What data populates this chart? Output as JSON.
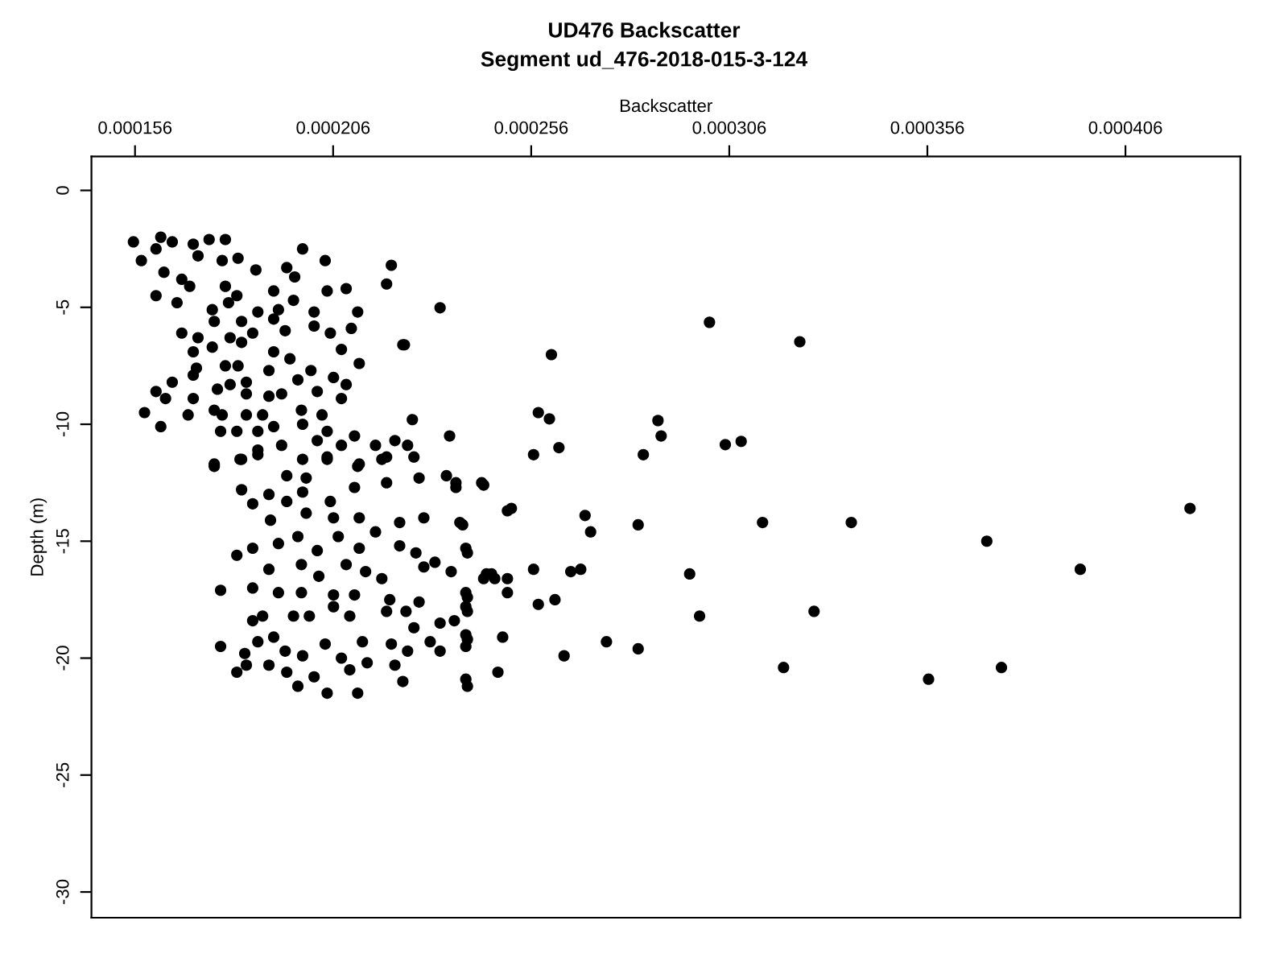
{
  "chart_data": {
    "type": "scatter",
    "title": "UD476 Backscatter",
    "subtitle": "Segment ud_476-2018-015-3-124",
    "xlabel": "Backscatter",
    "ylabel": "Depth (m)",
    "xlim": [
      0.000145,
      0.000435
    ],
    "ylim": [
      -31.1,
      1.45
    ],
    "xticks": [
      {
        "value": 0.000156,
        "label": "0.000156"
      },
      {
        "value": 0.000206,
        "label": "0.000206"
      },
      {
        "value": 0.000256,
        "label": "0.000256"
      },
      {
        "value": 0.000306,
        "label": "0.000306"
      },
      {
        "value": 0.000356,
        "label": "0.000356"
      },
      {
        "value": 0.000406,
        "label": "0.000406"
      }
    ],
    "yticks": [
      0,
      -5,
      -10,
      -15,
      -20,
      -25,
      -30
    ],
    "grid": false,
    "marker": "circle",
    "legend": false,
    "series": [
      {
        "color": "#000000",
        "x": [
          0.000301,
          0.0003238,
          0.0002611,
          0.000233,
          0.000224,
          0.000288,
          0.0002888,
          0.0002843,
          0.000305,
          0.000309,
          0.0002578,
          0.0002606,
          0.0002566,
          0.000263,
          0.0004223,
          0.0003144,
          0.0003368,
          0.000371,
          0.0003946,
          0.000296,
          0.0002985,
          0.0003274,
          0.0003197,
          0.0003563,
          0.0003747,
          0.0002696,
          0.000271,
          0.000283,
          0.00025,
          0.000251,
          0.0002566,
          0.000266,
          0.0002685,
          0.0002578,
          0.000262,
          0.000275,
          0.000283,
          0.0002643,
          0.0002476,
          0.0002395,
          0.0002488,
          0.0002435,
          0.000237,
          0.0002354,
          0.000226,
          0.000246,
          0.0002447,
          0.00025,
          0.00025,
          0.0002395,
          0.0002395,
          0.0002395,
          0.0002395,
          0.000238,
          0.0002395,
          0.0001556,
          0.0001625,
          0.0001654,
          0.0001707,
          0.0001747,
          0.0001788,
          0.0001576,
          0.0001613,
          0.0001719,
          0.000178,
          0.000182,
          0.0001983,
          0.000204,
          0.0001865,
          0.0001943,
          0.0001633,
          0.0001678,
          0.0001613,
          0.0001698,
          0.0001788,
          0.0001817,
          0.000191,
          0.0001963,
          0.0002045,
          0.0002093,
          0.0002207,
          0.0002195,
          0.0001666,
          0.0001755,
          0.0001796,
          0.000187,
          0.0001922,
          0.000196,
          0.0002012,
          0.0002122,
          0.000176,
          0.0001829,
          0.000191,
          0.0002012,
          0.0001678,
          0.00018,
          0.0001857,
          0.0001939,
          0.0002053,
          0.0002106,
          0.0001719,
          0.0001829,
          0.0002236,
          0.0001755,
          0.000191,
          0.0001707,
          0.0002081,
          0.0001715,
          0.0001788,
          0.000182,
          0.0001898,
          0.0001951,
          0.0002004,
          0.0002126,
          0.0001654,
          0.0001707,
          0.00018,
          0.0001841,
          0.0001971,
          0.0002061,
          0.0002093,
          0.0001613,
          0.0001637,
          0.0001707,
          0.0001768,
          0.0001841,
          0.0001898,
          0.000193,
          0.000202,
          0.0002081,
          0.0001584,
          0.0001694,
          0.000176,
          0.000178,
          0.0001841,
          0.0001882,
          0.000198,
          0.0002032,
          0.0001625,
          0.0001776,
          0.0001817,
          0.000187,
          0.000191,
          0.0001983,
          0.0002045,
          0.0002114,
          0.000202,
          0.0002081,
          0.0002167,
          0.0002216,
          0.0002248,
          0.000176,
          0.0001829,
          0.000187,
          0.000193,
          0.0001983,
          0.0002045,
          0.0002126,
          0.0002195,
          0.000176,
          0.0001825,
          0.000187,
          0.0001943,
          0.0001992,
          0.0002045,
          0.0002122,
          0.0002183,
          0.0002264,
          0.0001829,
          0.0001898,
          0.0001943,
          0.0001983,
          0.0002053,
          0.0002114,
          0.0002195,
          0.0002277,
          0.0002346,
          0.000237,
          0.000244,
          0.0001857,
          0.0001902,
          0.0001992,
          0.0002061,
          0.0002126,
          0.0002228,
          0.0002289,
          0.0002387,
          0.0001817,
          0.0001857,
          0.0001922,
          0.0001971,
          0.000202,
          0.0002073,
          0.0002126,
          0.0002167,
          0.0002228,
          0.0002269,
          0.0002399,
          0.0002289,
          0.0002317,
          0.0002358,
          0.0001898,
          0.000198,
          0.0002024,
          0.0002093,
          0.0002142,
          0.0002183,
          0.0001776,
          0.0001857,
          0.0001922,
          0.000198,
          0.0002061,
          0.0002114,
          0.0002203,
          0.0002277,
          0.0001857,
          0.0001882,
          0.000196,
          0.0002,
          0.0002061,
          0.0002102,
          0.0002195,
          0.0002244,
          0.0002264,
          0.000233,
          0.0002366,
          0.0001776,
          0.0001837,
          0.000187,
          0.000191,
          0.0001939,
          0.0001983,
          0.000204,
          0.0002081,
          0.0002134,
          0.0002207,
          0.0002248,
          0.0002305,
          0.000233,
          0.0001817,
          0.0001841,
          0.0001898,
          0.0001943,
          0.0001971,
          0.0002012,
          0.0002045,
          0.0002102,
          0.0002122,
          0.0002146,
          0.0002216,
          0.0002236,
          0.0002399,
          0.0002399,
          0.0002399,
          0.0002399,
          0.000244,
          0.0002468
        ],
        "values": [
          -5.64,
          -6.47,
          -7.02,
          -5.02,
          -6.6,
          -9.84,
          -10.5,
          -11.3,
          -10.87,
          -10.73,
          -9.5,
          -9.77,
          -11.3,
          -11.0,
          -13.6,
          -14.2,
          -14.2,
          -15.0,
          -16.2,
          -16.4,
          -18.2,
          -18.0,
          -20.4,
          -20.9,
          -20.4,
          -13.9,
          -14.6,
          -14.3,
          -13.7,
          -13.6,
          -16.2,
          -16.3,
          -16.2,
          -17.7,
          -17.5,
          -19.3,
          -19.6,
          -19.9,
          -20.6,
          -20.9,
          -19.1,
          -12.5,
          -12.5,
          -10.5,
          -9.8,
          -16.4,
          -16.4,
          -17.2,
          -16.6,
          -17.2,
          -17.8,
          -19.0,
          -19.5,
          -14.2,
          -15.3,
          -2.2,
          -2.0,
          -2.2,
          -2.3,
          -2.1,
          -2.1,
          -3.0,
          -2.5,
          -2.8,
          -3.0,
          -2.9,
          -2.5,
          -3.0,
          -3.4,
          -3.3,
          -3.5,
          -3.8,
          -4.5,
          -4.1,
          -4.1,
          -4.5,
          -4.3,
          -3.7,
          -4.3,
          -4.2,
          -3.2,
          -4.0,
          -4.8,
          -5.1,
          -4.8,
          -5.2,
          -5.1,
          -4.7,
          -5.2,
          -5.2,
          -5.6,
          -5.6,
          -5.5,
          -5.8,
          -6.1,
          -6.3,
          -6.1,
          -6.0,
          -6.1,
          -5.9,
          -6.3,
          -6.5,
          -6.6,
          -6.7,
          -6.9,
          -6.9,
          -6.8,
          -7.6,
          -7.5,
          -7.5,
          -7.7,
          -7.2,
          -7.7,
          -7.4,
          -8.2,
          -7.9,
          -8.3,
          -8.2,
          -8.1,
          -8.0,
          -8.3,
          -8.6,
          -8.9,
          -8.9,
          -8.5,
          -8.7,
          -8.8,
          -8.7,
          -8.6,
          -8.9,
          -9.5,
          -9.6,
          -9.4,
          -9.6,
          -9.6,
          -9.6,
          -9.4,
          -9.6,
          -10.1,
          -10.3,
          -10.3,
          -10.3,
          -10.1,
          -10.0,
          -10.3,
          -10.5,
          -10.7,
          -10.9,
          -10.9,
          -10.7,
          -10.9,
          -11.7,
          -11.5,
          -11.1,
          -10.9,
          -11.5,
          -11.4,
          -11.7,
          -11.4,
          -11.8,
          -11.5,
          -11.3,
          -12.2,
          -12.3,
          -11.5,
          -11.8,
          -11.5,
          -11.4,
          -12.8,
          -13.0,
          -13.3,
          -12.9,
          -13.3,
          -12.7,
          -12.5,
          -12.3,
          -12.2,
          -12.7,
          -12.6,
          -13.4,
          -14.1,
          -13.8,
          -14.0,
          -14.0,
          -14.2,
          -14.0,
          -14.3,
          -15.6,
          -15.3,
          -15.1,
          -14.8,
          -15.4,
          -14.8,
          -15.3,
          -14.6,
          -15.2,
          -15.5,
          -15.5,
          -16.1,
          -15.9,
          -16.3,
          -16.2,
          -16.0,
          -16.5,
          -16.0,
          -16.3,
          -16.6,
          -17.1,
          -17.0,
          -17.2,
          -17.2,
          -17.3,
          -17.3,
          -17.5,
          -17.6,
          -18.4,
          -18.2,
          -18.2,
          -18.2,
          -17.8,
          -18.2,
          -18.0,
          -18.0,
          -18.7,
          -18.5,
          -18.4,
          -19.5,
          -19.8,
          -19.3,
          -19.1,
          -19.7,
          -19.9,
          -19.4,
          -20.0,
          -19.3,
          -19.4,
          -19.7,
          -19.3,
          -19.7,
          -20.6,
          -20.3,
          -20.3,
          -20.6,
          -21.2,
          -20.8,
          -21.5,
          -20.5,
          -21.5,
          -20.2,
          -20.3,
          -21.0,
          -21.2,
          -19.2,
          -18.0,
          -17.4,
          -16.6,
          -16.6
        ]
      }
    ]
  }
}
